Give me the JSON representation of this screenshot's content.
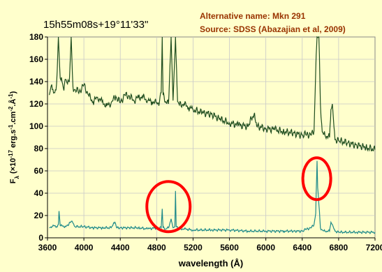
{
  "chart_data": {
    "type": "line",
    "title": "15h55m08s+19°11'33\"",
    "notes": [
      "Alternative name: Mkn 291",
      "Source: SDSS (Abazajian et al, 2009)"
    ],
    "xlabel": "wavelength (Å)",
    "ylabel": {
      "parts": [
        {
          "t": "F",
          "dy": 0
        },
        {
          "t": "λ",
          "sub": true
        },
        {
          "t": " (×10",
          "dy": 0
        },
        {
          "t": "-17",
          "sup": true
        },
        {
          "t": " erg.s",
          "dy": 0
        },
        {
          "t": "-1",
          "sup": true
        },
        {
          "t": ".cm",
          "dy": 0
        },
        {
          "t": "-2",
          "sup": true
        },
        {
          "t": ".Å",
          "dy": 0
        },
        {
          "t": "-1",
          "sup": true
        },
        {
          "t": ")",
          "dy": 0
        }
      ]
    },
    "xlim": [
      3600,
      7200
    ],
    "ylim": [
      0,
      180
    ],
    "xticks": [
      "3600",
      "4000",
      "4400",
      "4800",
      "5200",
      "5600",
      "6000",
      "6400",
      "6800",
      "7200"
    ],
    "yticks": [
      "0",
      "20",
      "40",
      "60",
      "80",
      "100",
      "120",
      "140",
      "160",
      "180"
    ],
    "grid": true,
    "colors": {
      "background": "#ffffcc",
      "grid": "#c8c8c8",
      "upper": "#1f4d1f",
      "lower": "#1e8a8a",
      "title": "#000000",
      "notes": "#993300",
      "highlight": "#ff0000"
    },
    "series": [
      {
        "key": "upper",
        "x": [
          3620,
          3640,
          3660,
          3680,
          3700,
          3720,
          3740,
          3760,
          3780,
          3800,
          3820,
          3840,
          3860,
          3880,
          3900,
          3950,
          4000,
          4050,
          4100,
          4150,
          4200,
          4250,
          4300,
          4350,
          4400,
          4450,
          4500,
          4550,
          4600,
          4650,
          4700,
          4750,
          4800,
          4830,
          4850,
          4861,
          4870,
          4900,
          4930,
          4959,
          4980,
          5007,
          5030,
          5050,
          5100,
          5150,
          5200,
          5300,
          5400,
          5500,
          5600,
          5700,
          5800,
          5876,
          5900,
          6000,
          6100,
          6200,
          6300,
          6400,
          6450,
          6500,
          6530,
          6548,
          6563,
          6583,
          6600,
          6620,
          6650,
          6700,
          6716,
          6731,
          6760,
          6800,
          6900,
          7000,
          7100,
          7200
        ],
        "y": [
          128,
          136,
          133,
          130,
          138,
          180,
          143,
          140,
          132,
          142,
          138,
          140,
          180,
          135,
          133,
          131,
          137,
          128,
          122,
          126,
          122,
          118,
          121,
          127,
          121,
          128,
          127,
          123,
          126,
          126,
          123,
          122,
          121,
          121,
          130,
          180,
          128,
          122,
          120,
          180,
          123,
          180,
          122,
          119,
          120,
          117,
          115,
          112,
          111,
          106,
          103,
          101,
          100,
          112,
          100,
          98,
          97,
          95,
          94,
          92,
          93,
          92,
          96,
          150,
          180,
          180,
          120,
          95,
          92,
          90,
          115,
          120,
          88,
          87,
          85,
          83,
          81,
          79
        ]
      },
      {
        "key": "lower",
        "x": [
          3620,
          3650,
          3680,
          3700,
          3720,
          3727,
          3740,
          3800,
          3869,
          3900,
          4000,
          4100,
          4200,
          4300,
          4340,
          4360,
          4400,
          4500,
          4600,
          4700,
          4800,
          4850,
          4861,
          4870,
          4900,
          4930,
          4959,
          4980,
          5000,
          5007,
          5015,
          5050,
          5100,
          5200,
          5400,
          5600,
          5800,
          6000,
          6200,
          6300,
          6400,
          6450,
          6500,
          6530,
          6548,
          6563,
          6570,
          6583,
          6600,
          6620,
          6650,
          6700,
          6716,
          6731,
          6760,
          6800,
          7000,
          7200
        ],
        "y": [
          9,
          10,
          11,
          10,
          12,
          24,
          11,
          10,
          15,
          10,
          10,
          9,
          9,
          9,
          14,
          9,
          9,
          9,
          9,
          8,
          9,
          9,
          26,
          9,
          8,
          9,
          17,
          9,
          10,
          42,
          10,
          8,
          8,
          7,
          7,
          7,
          6,
          6,
          6,
          6,
          6,
          8,
          9,
          12,
          22,
          69,
          45,
          30,
          9,
          7,
          6,
          6,
          14,
          12,
          6,
          5,
          5,
          5
        ]
      }
    ]
  }
}
